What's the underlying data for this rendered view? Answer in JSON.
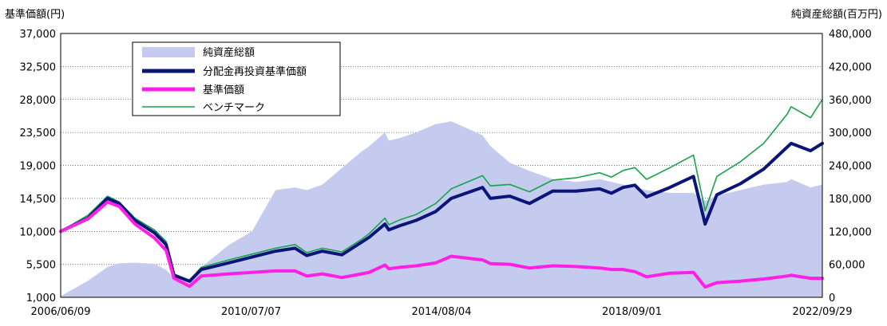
{
  "chart_data": {
    "type": "line",
    "y_left_label": "基準価額(円)",
    "y_right_label": "純資産総額(百万円)",
    "y_left_ticks": [
      "1,000",
      "5,500",
      "10,000",
      "14,500",
      "19,000",
      "23,500",
      "28,000",
      "32,500",
      "37,000"
    ],
    "y_right_ticks": [
      "0",
      "60,000",
      "120,000",
      "180,000",
      "240,000",
      "300,000",
      "360,000",
      "420,000",
      "480,000"
    ],
    "y_left_range": [
      1000,
      37000
    ],
    "y_right_range": [
      0,
      480000
    ],
    "x_ticks": [
      "2006/06/09",
      "2010/07/07",
      "2014/08/04",
      "2018/09/01",
      "2022/09/29"
    ],
    "x_range": [
      "2006/06/09",
      "2022/09/29"
    ],
    "grid": "horizontal",
    "legend_position": "top-left",
    "colors": {
      "area": "#c5cbee",
      "dist_nav": "#0b1478",
      "nav": "#ff1fe6",
      "benchmark": "#16a34a"
    },
    "x": [
      "2006/06",
      "2007/01",
      "2007/06",
      "2007/09",
      "2008/01",
      "2008/06",
      "2008/09",
      "2008/11",
      "2009/03",
      "2009/06",
      "2010/01",
      "2010/07",
      "2011/01",
      "2011/06",
      "2011/09",
      "2012/01",
      "2012/06",
      "2012/11",
      "2013/01",
      "2013/05",
      "2013/06",
      "2013/09",
      "2014/01",
      "2014/06",
      "2014/10",
      "2015/06",
      "2015/08",
      "2016/01",
      "2016/06",
      "2016/12",
      "2017/06",
      "2017/12",
      "2018/03",
      "2018/06",
      "2018/09",
      "2018/12",
      "2019/06",
      "2019/12",
      "2020/03",
      "2020/06",
      "2020/12",
      "2021/06",
      "2021/12",
      "2022/01",
      "2022/06",
      "2022/09"
    ],
    "series": [
      {
        "name": "純資産総額",
        "axis": "right",
        "values": [
          2000,
          30000,
          55000,
          62000,
          63000,
          61000,
          50000,
          35000,
          28000,
          55000,
          95000,
          120000,
          195000,
          200000,
          195000,
          205000,
          235000,
          265000,
          275000,
          300000,
          285000,
          290000,
          300000,
          315000,
          320000,
          295000,
          275000,
          245000,
          230000,
          215000,
          210000,
          215000,
          210000,
          205000,
          200000,
          195000,
          190000,
          190000,
          175000,
          185000,
          195000,
          205000,
          210000,
          215000,
          200000,
          205000
        ]
      },
      {
        "name": "分配金再投資基準価額",
        "axis": "left",
        "values": [
          10000,
          11800,
          14500,
          13800,
          11500,
          9800,
          8200,
          4000,
          3200,
          4800,
          5700,
          6500,
          7300,
          7700,
          6700,
          7300,
          6800,
          8500,
          9200,
          11000,
          10200,
          10800,
          11500,
          12700,
          14500,
          16000,
          14500,
          14800,
          13800,
          15500,
          15500,
          15800,
          15200,
          16000,
          16300,
          14700,
          16000,
          17500,
          11000,
          15000,
          16500,
          18500,
          21500,
          22000,
          21000,
          22000
        ]
      },
      {
        "name": "基準価額",
        "axis": "left",
        "values": [
          10000,
          11700,
          14000,
          13400,
          11000,
          9100,
          7400,
          3600,
          2500,
          3900,
          4200,
          4400,
          4600,
          4600,
          3900,
          4200,
          3700,
          4200,
          4400,
          5400,
          4900,
          5100,
          5300,
          5700,
          6600,
          6100,
          5600,
          5500,
          5000,
          5300,
          5200,
          5000,
          4800,
          4800,
          4500,
          3800,
          4300,
          4400,
          2400,
          3000,
          3200,
          3500,
          3900,
          4000,
          3600,
          3600
        ]
      },
      {
        "name": "ベンチマーク",
        "axis": "left",
        "values": [
          10000,
          12200,
          14800,
          14000,
          11800,
          10200,
          8600,
          4200,
          3300,
          5100,
          6100,
          6900,
          7700,
          8200,
          7100,
          7700,
          7200,
          8900,
          9700,
          11800,
          10900,
          11600,
          12300,
          13800,
          15800,
          17600,
          16200,
          16400,
          15400,
          17000,
          17300,
          18000,
          17400,
          18300,
          18700,
          17100,
          18700,
          20400,
          12800,
          17500,
          19500,
          22000,
          26000,
          27000,
          25500,
          28000
        ]
      }
    ]
  }
}
